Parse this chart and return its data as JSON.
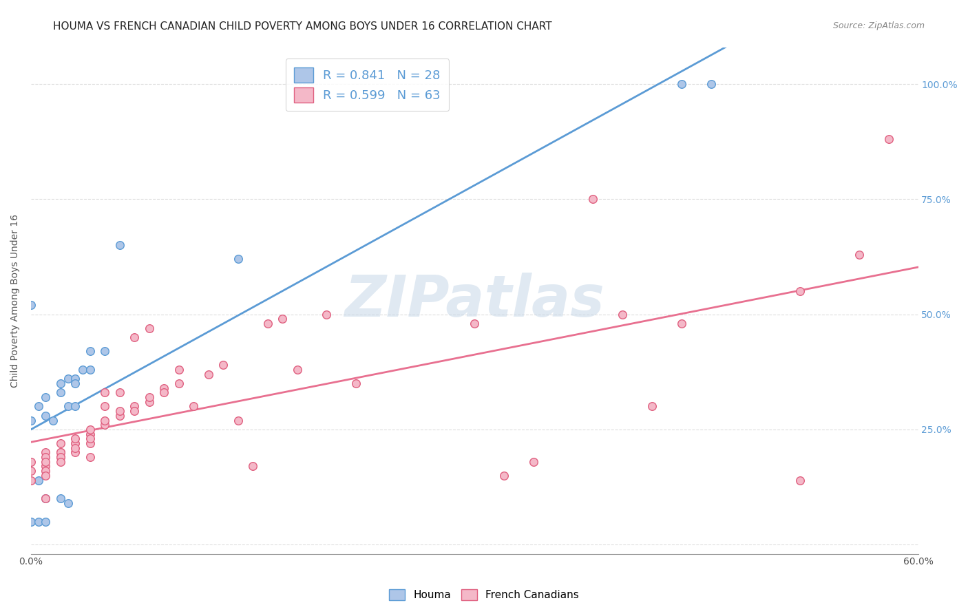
{
  "title": "HOUMA VS FRENCH CANADIAN CHILD POVERTY AMONG BOYS UNDER 16 CORRELATION CHART",
  "source": "Source: ZipAtlas.com",
  "ylabel": "Child Poverty Among Boys Under 16",
  "xlim": [
    0.0,
    0.6
  ],
  "ylim": [
    -0.02,
    1.08
  ],
  "yticks": [
    0.0,
    0.25,
    0.5,
    0.75,
    1.0
  ],
  "ytick_labels_right": [
    "",
    "25.0%",
    "50.0%",
    "75.0%",
    "100.0%"
  ],
  "houma_color": "#aec6e8",
  "houma_edge": "#5b9bd5",
  "french_color": "#f4b8c8",
  "french_edge": "#e06080",
  "line_houma_color": "#5b9bd5",
  "line_french_color": "#e87090",
  "background_color": "#ffffff",
  "grid_color": "#dddddd",
  "houma_x": [
    0.005,
    0.01,
    0.01,
    0.015,
    0.02,
    0.02,
    0.025,
    0.025,
    0.03,
    0.03,
    0.035,
    0.04,
    0.04,
    0.05,
    0.06,
    0.0,
    0.005,
    0.01,
    0.14,
    0.44,
    0.46,
    0.0,
    0.005,
    0.01,
    0.02,
    0.025,
    0.03,
    0.0
  ],
  "houma_y": [
    0.3,
    0.28,
    0.32,
    0.27,
    0.33,
    0.35,
    0.3,
    0.36,
    0.3,
    0.36,
    0.38,
    0.38,
    0.42,
    0.42,
    0.65,
    0.05,
    0.05,
    0.05,
    0.62,
    1.0,
    1.0,
    0.52,
    0.14,
    0.1,
    0.1,
    0.09,
    0.35,
    0.27
  ],
  "french_x": [
    0.0,
    0.0,
    0.0,
    0.01,
    0.01,
    0.01,
    0.01,
    0.01,
    0.01,
    0.01,
    0.02,
    0.02,
    0.02,
    0.02,
    0.02,
    0.02,
    0.03,
    0.03,
    0.03,
    0.03,
    0.04,
    0.04,
    0.04,
    0.04,
    0.04,
    0.05,
    0.05,
    0.05,
    0.05,
    0.06,
    0.06,
    0.06,
    0.07,
    0.07,
    0.07,
    0.08,
    0.08,
    0.08,
    0.09,
    0.09,
    0.1,
    0.1,
    0.11,
    0.12,
    0.13,
    0.14,
    0.15,
    0.16,
    0.17,
    0.18,
    0.2,
    0.22,
    0.3,
    0.32,
    0.34,
    0.38,
    0.4,
    0.42,
    0.44,
    0.52,
    0.52,
    0.56,
    0.58
  ],
  "french_y": [
    0.18,
    0.16,
    0.14,
    0.17,
    0.16,
    0.15,
    0.2,
    0.19,
    0.18,
    0.1,
    0.19,
    0.2,
    0.2,
    0.19,
    0.18,
    0.22,
    0.2,
    0.22,
    0.23,
    0.21,
    0.22,
    0.24,
    0.23,
    0.25,
    0.19,
    0.26,
    0.27,
    0.3,
    0.33,
    0.28,
    0.29,
    0.33,
    0.3,
    0.29,
    0.45,
    0.31,
    0.32,
    0.47,
    0.34,
    0.33,
    0.35,
    0.38,
    0.3,
    0.37,
    0.39,
    0.27,
    0.17,
    0.48,
    0.49,
    0.38,
    0.5,
    0.35,
    0.48,
    0.15,
    0.18,
    0.75,
    0.5,
    0.3,
    0.48,
    0.14,
    0.55,
    0.63,
    0.88
  ],
  "houma_R": 0.841,
  "houma_N": 28,
  "french_R": 0.599,
  "french_N": 63,
  "watermark_text": "ZIPatlas",
  "title_fontsize": 11,
  "axis_label_fontsize": 10,
  "tick_fontsize": 10,
  "right_tick_color": "#5b9bd5",
  "legend_fontsize": 13,
  "legend_label_color": "#5b9bd5"
}
